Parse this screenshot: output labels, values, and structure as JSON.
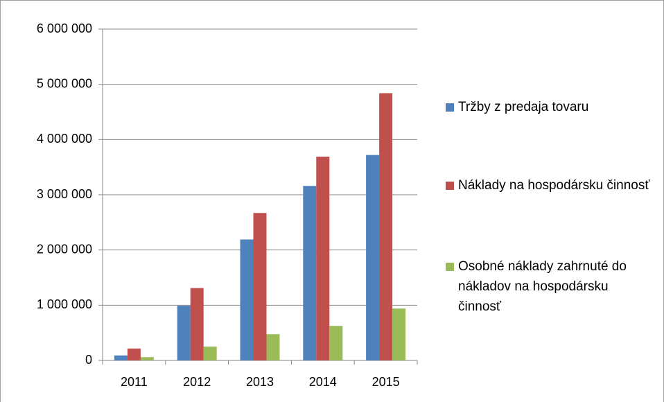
{
  "chart_data": {
    "type": "bar",
    "categories": [
      "2011",
      "2012",
      "2013",
      "2014",
      "2015"
    ],
    "series": [
      {
        "name": "Tržby z predaja tovaru",
        "color": "#4f81bd",
        "values": [
          90000,
          990000,
          2190000,
          3160000,
          3720000
        ]
      },
      {
        "name": "Náklady na hospodársku činnosť",
        "color": "#c0504d",
        "values": [
          215000,
          1310000,
          2670000,
          3690000,
          4840000
        ]
      },
      {
        "name": "Osobné náklady zahrnuté do nákladov na hospodársku činnosť",
        "color": "#9bbb59",
        "values": [
          60000,
          250000,
          475000,
          625000,
          940000
        ]
      }
    ],
    "ylim": [
      0,
      6000000
    ],
    "yticks": [
      0,
      {
        "value": 1000000,
        "label": "1 000 000"
      },
      {
        "value": 2000000,
        "label": "2 000 000"
      },
      {
        "value": 3000000,
        "label": "3 000 000"
      },
      {
        "value": 4000000,
        "label": "4 000 000"
      },
      {
        "value": 5000000,
        "label": "5 000 000"
      },
      {
        "value": 6000000,
        "label": "6 000 000"
      }
    ],
    "grid": true,
    "legend": "right"
  }
}
